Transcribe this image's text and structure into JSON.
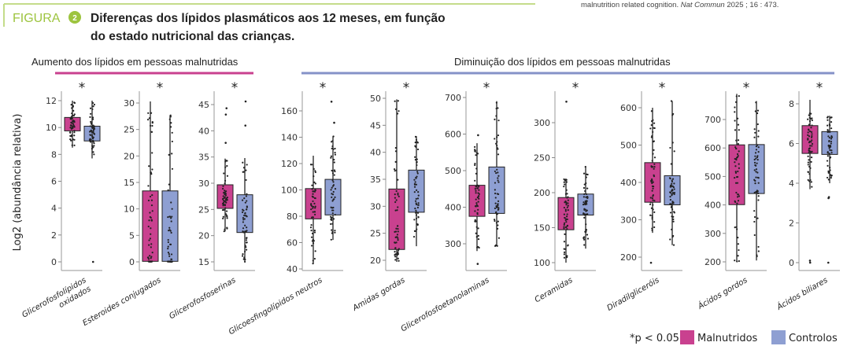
{
  "header": {
    "figure_label": "FIGURA",
    "figure_number": "2",
    "title_line1": "Diferenças dos lípidos plasmáticos aos 12 meses, em função",
    "title_line2": "do estado nutricional das crianças.",
    "citation_text": "malnutrition related cognition.",
    "citation_journal": "Nat Commun",
    "citation_ref": "2025 ; 16 : 473."
  },
  "sections": {
    "increase": "Aumento dos lípidos em pessoas malnutridas",
    "decrease": "Diminuição dos lípidos em pessoas malnutridas"
  },
  "ylabel": "Log2 (abundância relativa)",
  "legend": {
    "significance": "*p < 0.05",
    "malnourished": "Malnutridos",
    "controls": "Controlos"
  },
  "colors": {
    "malnourished": "#c9418f",
    "controls": "#8e9fd2",
    "accent": "#9dc43f",
    "increase_line": "#c9418f",
    "decrease_line": "#8592c8"
  },
  "chart_data": [
    {
      "type": "box",
      "category": "Glicerofosfolípidos oxidados",
      "label_lines": [
        "Glicerofosfolípidos",
        "oxidados"
      ],
      "significant": "*",
      "ylim": [
        0,
        12
      ],
      "ticks": [
        0,
        2,
        4,
        6,
        8,
        10,
        12
      ],
      "groups": {
        "Malnutridos": {
          "q1": 9.75,
          "q3": 10.75,
          "whisker_low": 8.5,
          "whisker_high": 12,
          "outliers": []
        },
        "Controlos": {
          "q1": 9.0,
          "q3": 10.1,
          "whisker_low": 7.7,
          "whisker_high": 12,
          "outliers": [
            0
          ]
        }
      }
    },
    {
      "type": "box",
      "category": "Esteroides conjugados",
      "label_lines": [
        "Esteroides conjugados"
      ],
      "significant": "*",
      "ylim": [
        0,
        30
      ],
      "ticks": [
        0,
        5,
        10,
        15,
        20,
        25,
        30
      ],
      "groups": {
        "Malnutridos": {
          "q1": 0.1,
          "q3": 13.4,
          "whisker_low": 0,
          "whisker_high": 30.3,
          "outliers": []
        },
        "Controlos": {
          "q1": 0.1,
          "q3": 13.4,
          "whisker_low": 0,
          "whisker_high": 27.7,
          "outliers": []
        }
      }
    },
    {
      "type": "box",
      "category": "Glicerofosfoserinas",
      "label_lines": [
        "Glicerofosfoserinas"
      ],
      "significant": "*",
      "ylim": [
        15,
        45
      ],
      "ticks": [
        15,
        20,
        25,
        30,
        35,
        40,
        45
      ],
      "groups": {
        "Malnutridos": {
          "q1": 25.2,
          "q3": 29.7,
          "whisker_low": 20.8,
          "whisker_high": 34.7,
          "outliers": [
            37.7,
            43.1,
            44.3
          ]
        },
        "Controlos": {
          "q1": 20.6,
          "q3": 27.8,
          "whisker_low": 15,
          "whisker_high": 34.8,
          "outliers": [
            41,
            45.6
          ]
        }
      }
    },
    {
      "type": "box",
      "category": "Glicoesfingolípidos neutros",
      "label_lines": [
        "Glicoesfingolípidos neutros"
      ],
      "significant": "*",
      "ylim": [
        40,
        160
      ],
      "ticks": [
        40,
        60,
        80,
        100,
        120,
        140,
        160
      ],
      "groups": {
        "Malnutridos": {
          "q1": 78,
          "q3": 101,
          "whisker_low": 44,
          "whisker_high": 126,
          "outliers": []
        },
        "Controlos": {
          "q1": 81,
          "q3": 108,
          "whisker_low": 62,
          "whisker_high": 141,
          "outliers": [
            151,
            167
          ]
        }
      }
    },
    {
      "type": "box",
      "category": "Amidas gordas",
      "label_lines": [
        "Amidas gordas"
      ],
      "significant": "*",
      "ylim": [
        20,
        50
      ],
      "ticks": [
        20,
        25,
        30,
        35,
        40,
        45,
        50
      ],
      "groups": {
        "Malnutridos": {
          "q1": 22,
          "q3": 33.2,
          "whisker_low": 19.7,
          "whisker_high": 49.8,
          "outliers": []
        },
        "Controlos": {
          "q1": 28.9,
          "q3": 36.7,
          "whisker_low": 22.6,
          "whisker_high": 43,
          "outliers": []
        }
      }
    },
    {
      "type": "box",
      "category": "Glicerofosfoetanolaminas",
      "label_lines": [
        "Glicerofosfoetanolaminas"
      ],
      "significant": "*",
      "ylim": [
        300,
        700
      ],
      "ticks": [
        300,
        400,
        500,
        600,
        700
      ],
      "groups": {
        "Malnutridos": {
          "q1": 375,
          "q3": 460,
          "whisker_low": 280,
          "whisker_high": 575,
          "outliers": [
            597,
            245
          ]
        },
        "Controlos": {
          "q1": 383,
          "q3": 510,
          "whisker_low": 293,
          "whisker_high": 690,
          "outliers": []
        }
      }
    },
    {
      "type": "box",
      "category": "Ceramidas",
      "label_lines": [
        "Ceramidas"
      ],
      "significant": "*",
      "ylim": [
        100,
        300
      ],
      "ticks": [
        100,
        150,
        200,
        250,
        300
      ],
      "groups": {
        "Malnutridos": {
          "q1": 147,
          "q3": 193,
          "whisker_low": 100,
          "whisker_high": 220,
          "outliers": [
            330
          ]
        },
        "Controlos": {
          "q1": 168,
          "q3": 198,
          "whisker_low": 120,
          "whisker_high": 238,
          "outliers": []
        }
      }
    },
    {
      "type": "box",
      "category": "Diradilgliceróis",
      "label_lines": [
        "Diradilgliceróis"
      ],
      "significant": "*",
      "ylim": [
        200,
        600
      ],
      "ticks": [
        200,
        300,
        400,
        500,
        600
      ],
      "groups": {
        "Malnutridos": {
          "q1": 347,
          "q3": 453,
          "whisker_low": 265,
          "whisker_high": 600,
          "outliers": [
            185
          ]
        },
        "Controlos": {
          "q1": 340,
          "q3": 418,
          "whisker_low": 232,
          "whisker_high": 618,
          "outliers": []
        }
      }
    },
    {
      "type": "box",
      "category": "Ácidos gordos",
      "label_lines": [
        "Ácidos gordos"
      ],
      "significant": "*",
      "ylim": [
        200,
        700
      ],
      "ticks": [
        200,
        300,
        400,
        500,
        600,
        700
      ],
      "groups": {
        "Malnutridos": {
          "q1": 401,
          "q3": 611,
          "whisker_low": 200,
          "whisker_high": 790,
          "outliers": []
        },
        "Controlos": {
          "q1": 440,
          "q3": 612,
          "whisker_low": 205,
          "whisker_high": 765,
          "outliers": []
        }
      }
    },
    {
      "type": "box",
      "category": "Ácidos biliares",
      "label_lines": [
        "Ácidos biliares"
      ],
      "significant": "*",
      "ylim": [
        0,
        8
      ],
      "ticks": [
        0,
        2,
        4,
        6,
        8
      ],
      "groups": {
        "Malnutridos": {
          "q1": 5.5,
          "q3": 6.9,
          "whisker_low": 3.7,
          "whisker_high": 8.2,
          "outliers": [
            0,
            0.1
          ]
        },
        "Controlos": {
          "q1": 5.45,
          "q3": 6.6,
          "whisker_low": 4.0,
          "whisker_high": 7.4,
          "outliers": [
            3.3,
            3.25,
            0
          ]
        }
      }
    }
  ]
}
